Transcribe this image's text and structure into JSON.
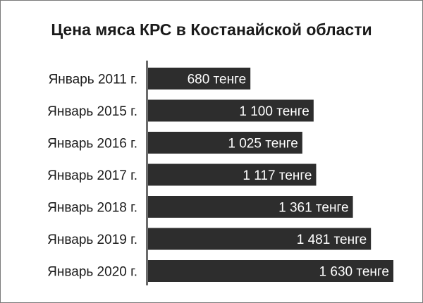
{
  "chart_data": {
    "type": "bar",
    "orientation": "horizontal",
    "title": "Цена мяса КРС в Костанайской области",
    "categories": [
      "Январь 2011 г.",
      "Январь 2015 г.",
      "Январь 2016 г.",
      "Январь 2017 г.",
      "Январь 2018 г.",
      "Январь 2019 г.",
      "Январь 2020 г."
    ],
    "values": [
      680,
      1100,
      1025,
      1117,
      1361,
      1481,
      1630
    ],
    "value_labels": [
      "680 тенге",
      "1 100 тенге",
      "1 025 тенге",
      "1 117 тенге",
      "1 361 тенге",
      "1 481 тенге",
      "1 630 тенге"
    ],
    "xlim": [
      0,
      1630
    ],
    "grid": false,
    "legend": "none",
    "bar_color": "#2d2d2d",
    "label_color": "#ffffff"
  }
}
